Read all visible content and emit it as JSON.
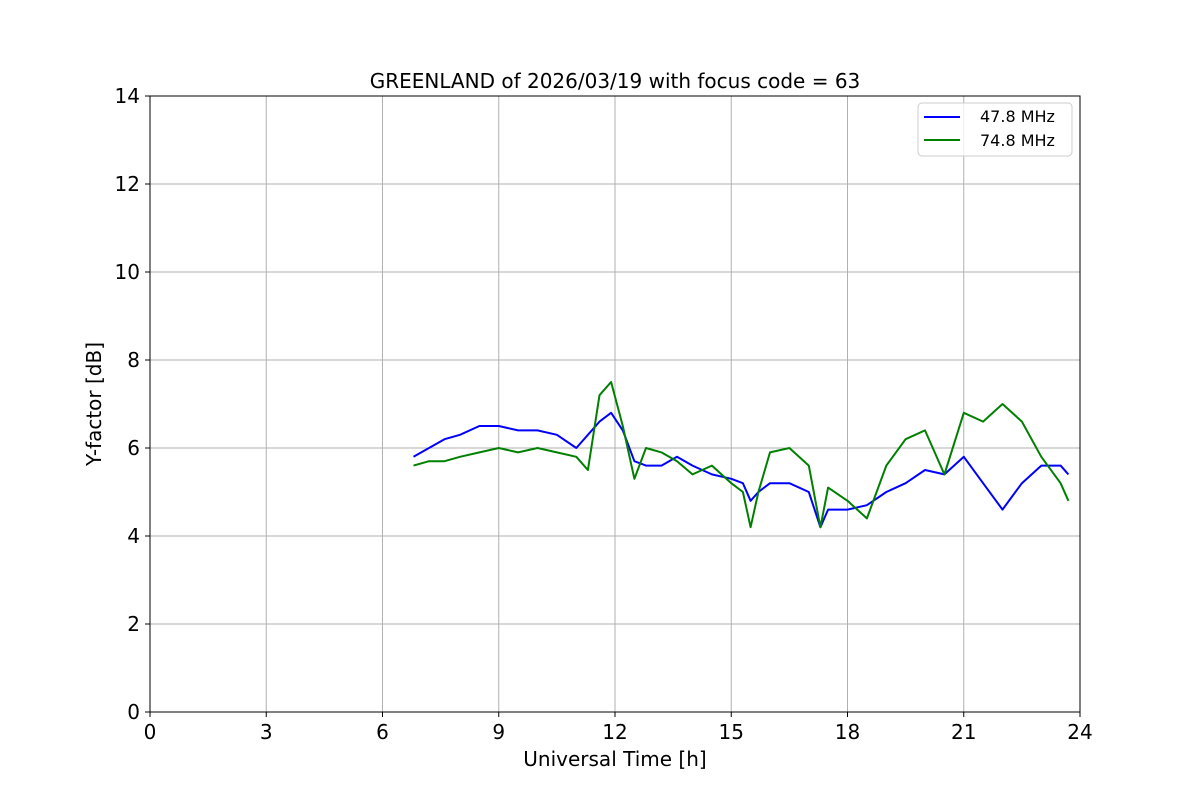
{
  "chart_data": {
    "type": "line",
    "title": "GREENLAND of 2026/03/19 with focus code = 63",
    "xlabel": "Universal Time [h]",
    "ylabel": "Y-factor [dB]",
    "xlim": [
      0,
      24
    ],
    "ylim": [
      0,
      14
    ],
    "xticks": [
      0,
      3,
      6,
      9,
      12,
      15,
      18,
      21,
      24
    ],
    "yticks": [
      0,
      2,
      4,
      6,
      8,
      10,
      12,
      14
    ],
    "grid": true,
    "legend_position": "top-right",
    "series": [
      {
        "name": "47.8 MHz",
        "color": "#0000ff",
        "x": [
          6.8,
          7.2,
          7.6,
          8.0,
          8.5,
          9.0,
          9.5,
          10.0,
          10.5,
          11.0,
          11.3,
          11.6,
          11.9,
          12.2,
          12.5,
          12.8,
          13.2,
          13.6,
          14.0,
          14.5,
          15.0,
          15.3,
          15.5,
          15.7,
          16.0,
          16.5,
          17.0,
          17.3,
          17.5,
          18.0,
          18.5,
          19.0,
          19.5,
          20.0,
          20.5,
          21.0,
          21.5,
          22.0,
          22.5,
          23.0,
          23.5,
          23.7
        ],
        "y": [
          5.8,
          6.0,
          6.2,
          6.3,
          6.5,
          6.5,
          6.4,
          6.4,
          6.3,
          6.0,
          6.3,
          6.6,
          6.8,
          6.4,
          5.7,
          5.6,
          5.6,
          5.8,
          5.6,
          5.4,
          5.3,
          5.2,
          4.8,
          5.0,
          5.2,
          5.2,
          5.0,
          4.2,
          4.6,
          4.6,
          4.7,
          5.0,
          5.2,
          5.5,
          5.4,
          5.8,
          5.2,
          4.6,
          5.2,
          5.6,
          5.6,
          5.4
        ]
      },
      {
        "name": "74.8 MHz",
        "color": "#008000",
        "x": [
          6.8,
          7.2,
          7.6,
          8.0,
          8.5,
          9.0,
          9.5,
          10.0,
          10.5,
          11.0,
          11.3,
          11.6,
          11.9,
          12.2,
          12.5,
          12.8,
          13.2,
          13.6,
          14.0,
          14.5,
          15.0,
          15.3,
          15.5,
          15.7,
          16.0,
          16.5,
          17.0,
          17.3,
          17.5,
          18.0,
          18.5,
          19.0,
          19.5,
          20.0,
          20.5,
          21.0,
          21.5,
          22.0,
          22.5,
          23.0,
          23.5,
          23.7
        ],
        "y": [
          5.6,
          5.7,
          5.7,
          5.8,
          5.9,
          6.0,
          5.9,
          6.0,
          5.9,
          5.8,
          5.5,
          7.2,
          7.5,
          6.5,
          5.3,
          6.0,
          5.9,
          5.7,
          5.4,
          5.6,
          5.2,
          5.0,
          4.2,
          5.0,
          5.9,
          6.0,
          5.6,
          4.2,
          5.1,
          4.8,
          4.4,
          5.6,
          6.2,
          6.4,
          5.4,
          6.8,
          6.6,
          7.0,
          6.6,
          5.8,
          5.2,
          4.8
        ]
      }
    ]
  }
}
